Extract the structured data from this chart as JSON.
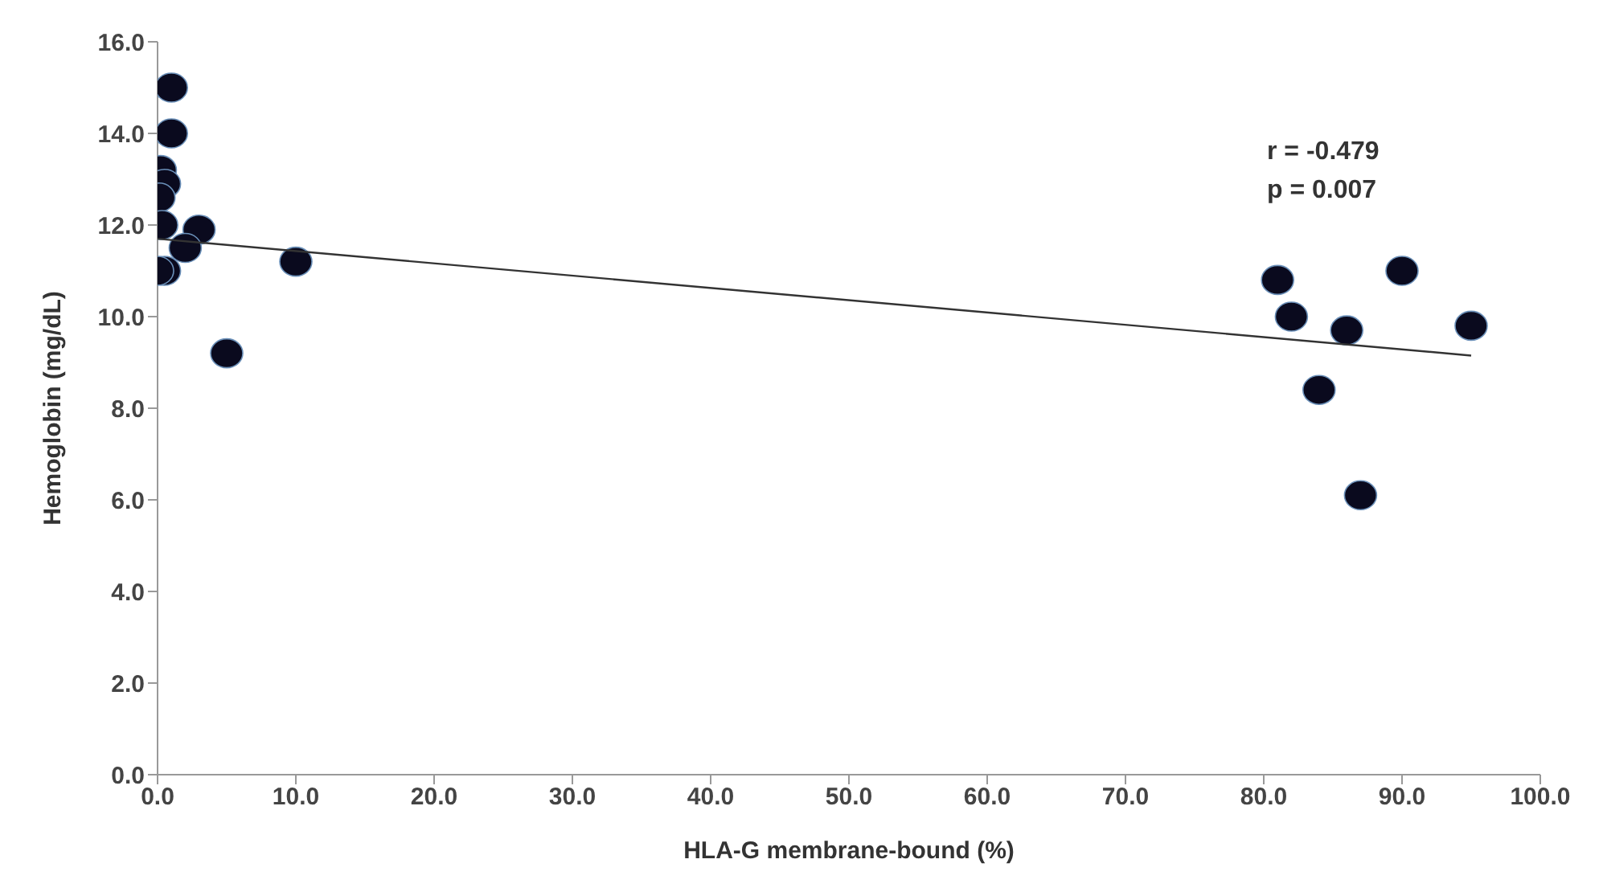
{
  "chart_data": {
    "type": "scatter",
    "xlabel": "HLA-G membrane-bound (%)",
    "ylabel": "Hemoglobin (mg/dL)",
    "xlim": [
      0,
      100
    ],
    "xticks": [
      {
        "value": 0,
        "label": "0.0"
      },
      {
        "value": 10,
        "label": "10.0"
      },
      {
        "value": 20,
        "label": "20.0"
      },
      {
        "value": 30,
        "label": "30.0"
      },
      {
        "value": 40,
        "label": "40.0"
      },
      {
        "value": 50,
        "label": "50.0"
      },
      {
        "value": 60,
        "label": "60.0"
      },
      {
        "value": 70,
        "label": "70.0"
      },
      {
        "value": 80,
        "label": "80.0"
      },
      {
        "value": 90,
        "label": "90.0"
      },
      {
        "value": 100,
        "label": "100.0"
      }
    ],
    "ylim": [
      0,
      16
    ],
    "yticks": [
      {
        "value": 0,
        "label": "0.0"
      },
      {
        "value": 2,
        "label": "2.0"
      },
      {
        "value": 4,
        "label": "4.0"
      },
      {
        "value": 6,
        "label": "6.0"
      },
      {
        "value": 8,
        "label": "8.0"
      },
      {
        "value": 10,
        "label": "10.0"
      },
      {
        "value": 12,
        "label": "12.0"
      },
      {
        "value": 14,
        "label": "14.0"
      },
      {
        "value": 16,
        "label": "16.0"
      }
    ],
    "grid": false,
    "legend": false,
    "marker": "circle",
    "annotations": [
      "r = -0.479",
      "p = 0.007"
    ],
    "series": [
      {
        "color": "#0a0a1e",
        "x": [
          1,
          1,
          0.2,
          0.5,
          0.1,
          0.3,
          3,
          2,
          0.5,
          0,
          10,
          5,
          81,
          82,
          84,
          86,
          87,
          90,
          95
        ],
        "values": [
          15,
          14,
          13.2,
          12.9,
          12.6,
          12,
          11.9,
          11.5,
          11,
          11,
          11.2,
          9.2,
          10.8,
          10,
          8.4,
          9.7,
          6.1,
          11,
          9.8
        ]
      },
      {
        "type": "line",
        "color": "#333333",
        "x": [
          0,
          95
        ],
        "values": [
          11.7,
          9.15
        ],
        "marker": "none"
      }
    ]
  }
}
